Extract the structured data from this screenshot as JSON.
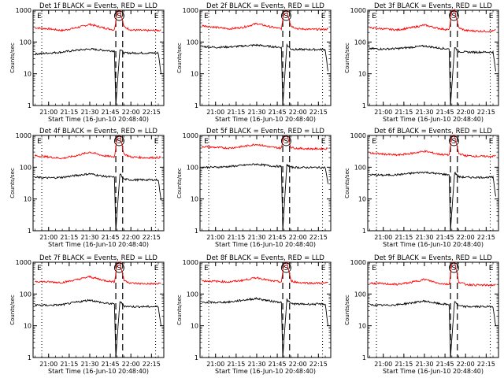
{
  "figure": {
    "panels": [
      {
        "title": "Det 1f BLACK = Events, RED = LLD",
        "xlabel": "Start Time (16-Jun-10 20:48:40)",
        "ylabel": "Counts/sec"
      },
      {
        "title": "Det 2f BLACK = Events, RED = LLD",
        "xlabel": "Start Time (16-Jun-10 20:48:40)",
        "ylabel": "Counts/sec"
      },
      {
        "title": "Det 3f BLACK = Events, RED = LLD",
        "xlabel": "Start Time (16-Jun-10 20:48:40)",
        "ylabel": "Counts/sec"
      },
      {
        "title": "Det 4f BLACK = Events, RED = LLD",
        "xlabel": "Start Time (16-Jun-10 20:48:40)",
        "ylabel": "Counts/sec"
      },
      {
        "title": "Det 5f BLACK = Events, RED = LLD",
        "xlabel": "Start Time (16-Jun-10 20:48:40)",
        "ylabel": "Counts/sec"
      },
      {
        "title": "Det 6f BLACK = Events, RED = LLD",
        "xlabel": "Start Time (16-Jun-10 20:48:40)",
        "ylabel": "Counts/sec"
      },
      {
        "title": "Det 7f BLACK = Events, RED = LLD",
        "xlabel": "Start Time (16-Jun-10 20:48:40)",
        "ylabel": "Counts/sec"
      },
      {
        "title": "Det 8f BLACK = Events, RED = LLD",
        "xlabel": "Start Time (16-Jun-10 20:48:40)",
        "ylabel": "Counts/sec"
      },
      {
        "title": "Det 9f BLACK = Events, RED = LLD",
        "xlabel": "Start Time (16-Jun-10 20:48:40)",
        "ylabel": "Counts/sec"
      }
    ],
    "marker_labels": [
      "E",
      "S",
      "E"
    ]
  },
  "chart_data": [
    {
      "type": "line",
      "title": "Det 1f BLACK = Events, RED = LLD",
      "xlabel": "Start Time (16-Jun-10 20:48:40)",
      "ylabel": "Counts/sec",
      "y_scale": "log",
      "ylim": [
        1,
        1000
      ],
      "y_tick_labels": [
        "1",
        "10",
        "100",
        "1000"
      ],
      "xlim": [
        "20:48:40",
        "22:24"
      ],
      "x_tick_labels": [
        "21:00",
        "21:15",
        "21:30",
        "21:45",
        "22:00",
        "22:15"
      ],
      "dotted_vlines": [
        "20:55",
        "22:18"
      ],
      "dashed_vlines": [
        "21:49",
        "21:54"
      ],
      "series": [
        {
          "color": "#ff0000",
          "x": [
            "20:50",
            "21:00",
            "21:10",
            "21:20",
            "21:30",
            "21:40",
            "21:48",
            "21:50",
            "21:52",
            "21:55",
            "22:00",
            "22:10",
            "22:20",
            "22:22"
          ],
          "y": [
            280,
            260,
            230,
            280,
            360,
            280,
            240,
            900,
            1000,
            300,
            240,
            230,
            230,
            240
          ]
        },
        {
          "color": "#000000",
          "x": [
            "20:50",
            "21:00",
            "21:10",
            "21:20",
            "21:30",
            "21:40",
            "21:48",
            "21:49",
            "21:52",
            "21:55",
            "22:00",
            "22:10",
            "22:20",
            "22:22"
          ],
          "y": [
            42,
            45,
            48,
            55,
            60,
            55,
            52,
            1,
            60,
            45,
            45,
            45,
            45,
            10
          ]
        }
      ]
    },
    {
      "type": "line",
      "title": "Det 2f BLACK = Events, RED = LLD",
      "xlabel": "Start Time (16-Jun-10 20:48:40)",
      "ylabel": "Counts/sec",
      "y_scale": "log",
      "ylim": [
        1,
        1000
      ],
      "y_tick_labels": [
        "1",
        "10",
        "100",
        "1000"
      ],
      "xlim": [
        "20:48:40",
        "22:24"
      ],
      "x_tick_labels": [
        "21:00",
        "21:15",
        "21:30",
        "21:45",
        "22:00",
        "22:15"
      ],
      "dotted_vlines": [
        "20:55",
        "22:18"
      ],
      "dashed_vlines": [
        "21:49",
        "21:54"
      ],
      "series": [
        {
          "color": "#ff0000",
          "x": [
            "20:50",
            "21:00",
            "21:10",
            "21:20",
            "21:30",
            "21:40",
            "21:48",
            "21:50",
            "21:52",
            "21:55",
            "22:00",
            "22:10",
            "22:20",
            "22:22"
          ],
          "y": [
            330,
            290,
            260,
            290,
            380,
            300,
            260,
            900,
            1000,
            320,
            260,
            250,
            250,
            260
          ]
        },
        {
          "color": "#000000",
          "x": [
            "20:50",
            "21:00",
            "21:10",
            "21:20",
            "21:30",
            "21:40",
            "21:48",
            "21:49",
            "21:52",
            "21:55",
            "22:00",
            "22:10",
            "22:20",
            "22:22"
          ],
          "y": [
            72,
            68,
            70,
            75,
            80,
            72,
            68,
            1,
            80,
            60,
            58,
            58,
            58,
            12
          ]
        }
      ]
    },
    {
      "type": "line",
      "title": "Det 3f BLACK = Events, RED = LLD",
      "xlabel": "Start Time (16-Jun-10 20:48:40)",
      "ylabel": "Counts/sec",
      "y_scale": "log",
      "ylim": [
        1,
        1000
      ],
      "y_tick_labels": [
        "1",
        "10",
        "100",
        "1000"
      ],
      "xlim": [
        "20:48:40",
        "22:24"
      ],
      "x_tick_labels": [
        "21:00",
        "21:15",
        "21:30",
        "21:45",
        "22:00",
        "22:15"
      ],
      "dotted_vlines": [
        "20:55",
        "22:18"
      ],
      "dashed_vlines": [
        "21:49",
        "21:54"
      ],
      "series": [
        {
          "color": "#ff0000",
          "x": [
            "20:50",
            "21:00",
            "21:10",
            "21:20",
            "21:30",
            "21:40",
            "21:48",
            "21:50",
            "21:52",
            "21:55",
            "22:00",
            "22:10",
            "22:20",
            "22:22"
          ],
          "y": [
            280,
            260,
            240,
            280,
            340,
            270,
            240,
            900,
            1000,
            280,
            230,
            220,
            220,
            240
          ]
        },
        {
          "color": "#000000",
          "x": [
            "20:50",
            "21:00",
            "21:10",
            "21:20",
            "21:30",
            "21:40",
            "21:48",
            "21:49",
            "21:52",
            "21:55",
            "22:00",
            "22:10",
            "22:20",
            "22:22"
          ],
          "y": [
            62,
            60,
            62,
            68,
            75,
            65,
            60,
            1,
            70,
            50,
            48,
            48,
            48,
            12
          ]
        }
      ]
    },
    {
      "type": "line",
      "title": "Det 4f BLACK = Events, RED = LLD",
      "xlabel": "Start Time (16-Jun-10 20:48:40)",
      "ylabel": "Counts/sec",
      "y_scale": "log",
      "ylim": [
        1,
        1000
      ],
      "y_tick_labels": [
        "1",
        "10",
        "100",
        "1000"
      ],
      "xlim": [
        "20:48:40",
        "22:24"
      ],
      "x_tick_labels": [
        "21:00",
        "21:15",
        "21:30",
        "21:45",
        "22:00",
        "22:15"
      ],
      "dotted_vlines": [
        "20:55",
        "22:18"
      ],
      "dashed_vlines": [
        "21:49",
        "21:54"
      ],
      "series": [
        {
          "color": "#ff0000",
          "x": [
            "20:50",
            "21:00",
            "21:10",
            "21:20",
            "21:30",
            "21:40",
            "21:48",
            "21:50",
            "21:52",
            "21:55",
            "22:00",
            "22:10",
            "22:20",
            "22:22"
          ],
          "y": [
            230,
            210,
            190,
            230,
            300,
            230,
            210,
            900,
            1000,
            260,
            210,
            200,
            200,
            210
          ]
        },
        {
          "color": "#000000",
          "x": [
            "20:50",
            "21:00",
            "21:10",
            "21:20",
            "21:30",
            "21:40",
            "21:48",
            "21:49",
            "21:52",
            "21:55",
            "22:00",
            "22:10",
            "22:20",
            "22:22"
          ],
          "y": [
            48,
            46,
            48,
            55,
            62,
            52,
            48,
            1,
            62,
            42,
            40,
            40,
            40,
            9
          ]
        }
      ]
    },
    {
      "type": "line",
      "title": "Det 5f BLACK = Events, RED = LLD",
      "xlabel": "Start Time (16-Jun-10 20:48:40)",
      "ylabel": "Counts/sec",
      "y_scale": "log",
      "ylim": [
        1,
        1000
      ],
      "y_tick_labels": [
        "1",
        "10",
        "100",
        "1000"
      ],
      "xlim": [
        "20:48:40",
        "22:24"
      ],
      "x_tick_labels": [
        "21:00",
        "21:15",
        "21:30",
        "21:45",
        "22:00",
        "22:15"
      ],
      "dotted_vlines": [
        "20:55",
        "22:18"
      ],
      "dashed_vlines": [
        "21:49",
        "21:54"
      ],
      "series": [
        {
          "color": "#ff0000",
          "x": [
            "20:50",
            "21:00",
            "21:10",
            "21:20",
            "21:30",
            "21:40",
            "21:48",
            "21:50",
            "21:52",
            "21:55",
            "22:00",
            "22:10",
            "22:20",
            "22:22"
          ],
          "y": [
            450,
            420,
            400,
            450,
            530,
            430,
            400,
            950,
            1000,
            420,
            390,
            380,
            380,
            390
          ]
        },
        {
          "color": "#000000",
          "x": [
            "20:50",
            "21:00",
            "21:10",
            "21:20",
            "21:30",
            "21:40",
            "21:48",
            "21:49",
            "21:52",
            "21:55",
            "22:00",
            "22:10",
            "22:20",
            "22:22"
          ],
          "y": [
            100,
            100,
            105,
            115,
            125,
            110,
            105,
            1,
            120,
            100,
            98,
            98,
            98,
            30
          ]
        }
      ]
    },
    {
      "type": "line",
      "title": "Det 6f BLACK = Events, RED = LLD",
      "xlabel": "Start Time (16-Jun-10 20:48:40)",
      "ylabel": "Counts/sec",
      "y_scale": "log",
      "ylim": [
        1,
        1000
      ],
      "y_tick_labels": [
        "1",
        "10",
        "100",
        "1000"
      ],
      "xlim": [
        "20:48:40",
        "22:24"
      ],
      "x_tick_labels": [
        "21:00",
        "21:15",
        "21:30",
        "21:45",
        "22:00",
        "22:15"
      ],
      "dotted_vlines": [
        "20:55",
        "22:18"
      ],
      "dashed_vlines": [
        "21:49",
        "21:54"
      ],
      "series": [
        {
          "color": "#ff0000",
          "x": [
            "20:50",
            "21:00",
            "21:10",
            "21:20",
            "21:30",
            "21:40",
            "21:48",
            "21:50",
            "21:52",
            "21:55",
            "22:00",
            "22:10",
            "22:20",
            "22:22"
          ],
          "y": [
            280,
            260,
            240,
            270,
            320,
            260,
            240,
            900,
            1000,
            270,
            230,
            220,
            220,
            230
          ]
        },
        {
          "color": "#000000",
          "x": [
            "20:50",
            "21:00",
            "21:10",
            "21:20",
            "21:30",
            "21:40",
            "21:48",
            "21:49",
            "21:52",
            "21:55",
            "22:00",
            "22:10",
            "22:20",
            "22:22"
          ],
          "y": [
            58,
            56,
            58,
            64,
            70,
            62,
            58,
            1,
            68,
            50,
            48,
            48,
            48,
            12
          ]
        }
      ]
    },
    {
      "type": "line",
      "title": "Det 7f BLACK = Events, RED = LLD",
      "xlabel": "Start Time (16-Jun-10 20:48:40)",
      "ylabel": "Counts/sec",
      "y_scale": "log",
      "ylim": [
        1,
        1000
      ],
      "y_tick_labels": [
        "1",
        "10",
        "100",
        "1000"
      ],
      "xlim": [
        "20:48:40",
        "22:24"
      ],
      "x_tick_labels": [
        "21:00",
        "21:15",
        "21:30",
        "21:45",
        "22:00",
        "22:15"
      ],
      "dotted_vlines": [
        "20:55",
        "22:18"
      ],
      "dashed_vlines": [
        "21:49",
        "21:54"
      ],
      "series": [
        {
          "color": "#ff0000",
          "x": [
            "20:50",
            "21:00",
            "21:10",
            "21:20",
            "21:30",
            "21:40",
            "21:48",
            "21:50",
            "21:52",
            "21:55",
            "22:00",
            "22:10",
            "22:20",
            "22:22"
          ],
          "y": [
            250,
            240,
            230,
            280,
            350,
            270,
            240,
            900,
            1000,
            270,
            220,
            210,
            210,
            220
          ]
        },
        {
          "color": "#000000",
          "x": [
            "20:50",
            "21:00",
            "21:10",
            "21:20",
            "21:30",
            "21:40",
            "21:48",
            "21:49",
            "21:52",
            "21:55",
            "22:00",
            "22:10",
            "22:20",
            "22:22"
          ],
          "y": [
            45,
            44,
            46,
            55,
            65,
            52,
            48,
            1,
            60,
            42,
            40,
            40,
            40,
            10
          ]
        }
      ]
    },
    {
      "type": "line",
      "title": "Det 8f BLACK = Events, RED = LLD",
      "xlabel": "Start Time (16-Jun-10 20:48:40)",
      "ylabel": "Counts/sec",
      "y_scale": "log",
      "ylim": [
        1,
        1000
      ],
      "y_tick_labels": [
        "1",
        "10",
        "100",
        "1000"
      ],
      "xlim": [
        "20:48:40",
        "22:24"
      ],
      "x_tick_labels": [
        "21:00",
        "21:15",
        "21:30",
        "21:45",
        "22:00",
        "22:15"
      ],
      "dotted_vlines": [
        "20:55",
        "22:18"
      ],
      "dashed_vlines": [
        "21:49",
        "21:54"
      ],
      "series": [
        {
          "color": "#ff0000",
          "x": [
            "20:50",
            "21:00",
            "21:10",
            "21:20",
            "21:30",
            "21:40",
            "21:48",
            "21:50",
            "21:52",
            "21:55",
            "22:00",
            "22:10",
            "22:20",
            "22:22"
          ],
          "y": [
            260,
            250,
            240,
            270,
            330,
            260,
            240,
            900,
            1000,
            260,
            230,
            220,
            220,
            230
          ]
        },
        {
          "color": "#000000",
          "x": [
            "20:50",
            "21:00",
            "21:10",
            "21:20",
            "21:30",
            "21:40",
            "21:48",
            "21:49",
            "21:52",
            "21:55",
            "22:00",
            "22:10",
            "22:20",
            "22:22"
          ],
          "y": [
            55,
            54,
            56,
            64,
            72,
            60,
            55,
            1,
            66,
            50,
            48,
            48,
            48,
            10
          ]
        }
      ]
    },
    {
      "type": "line",
      "title": "Det 9f BLACK = Events, RED = LLD",
      "xlabel": "Start Time (16-Jun-10 20:48:40)",
      "ylabel": "Counts/sec",
      "y_scale": "log",
      "ylim": [
        1,
        1000
      ],
      "y_tick_labels": [
        "1",
        "10",
        "100",
        "1000"
      ],
      "xlim": [
        "20:48:40",
        "22:24"
      ],
      "x_tick_labels": [
        "21:00",
        "21:15",
        "21:30",
        "21:45",
        "22:00",
        "22:15"
      ],
      "dotted_vlines": [
        "20:55",
        "22:18"
      ],
      "dashed_vlines": [
        "21:49",
        "21:54"
      ],
      "series": [
        {
          "color": "#ff0000",
          "x": [
            "20:50",
            "21:00",
            "21:10",
            "21:20",
            "21:30",
            "21:40",
            "21:48",
            "21:50",
            "21:52",
            "21:55",
            "22:00",
            "22:10",
            "22:20",
            "22:22"
          ],
          "y": [
            220,
            210,
            200,
            230,
            290,
            220,
            200,
            900,
            1000,
            240,
            200,
            190,
            190,
            200
          ]
        },
        {
          "color": "#000000",
          "x": [
            "20:50",
            "21:00",
            "21:10",
            "21:20",
            "21:30",
            "21:40",
            "21:48",
            "21:49",
            "21:52",
            "21:55",
            "22:00",
            "22:10",
            "22:20",
            "22:22"
          ],
          "y": [
            45,
            44,
            46,
            52,
            60,
            50,
            46,
            1,
            60,
            42,
            40,
            40,
            40,
            10
          ]
        }
      ]
    }
  ]
}
